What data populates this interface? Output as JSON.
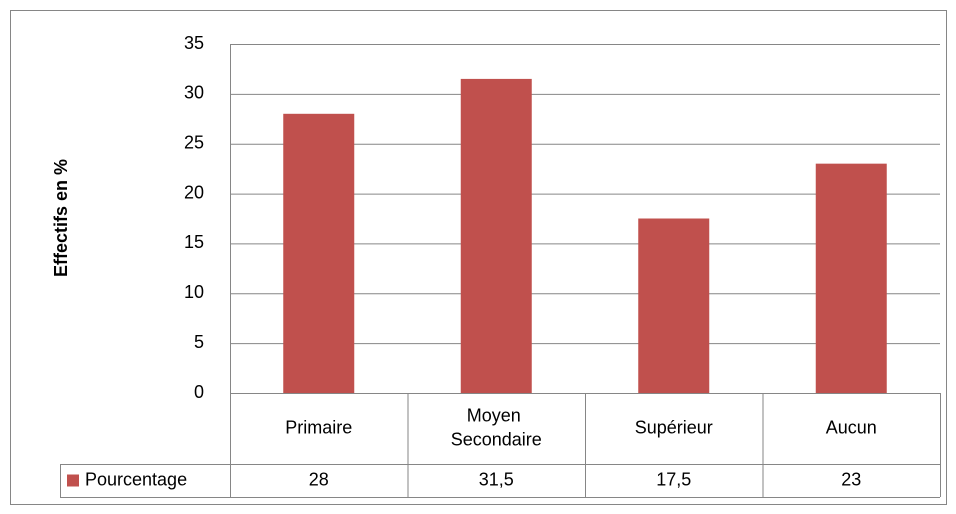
{
  "chart_data": {
    "type": "bar",
    "y_label": "Effectifs en %",
    "categories": [
      "Primaire",
      "Moyen Secondaire",
      "Supérieur",
      "Aucun"
    ],
    "series": [
      {
        "name": "Pourcentage",
        "color": "#c0504d",
        "values": [
          28,
          31.5,
          17.5,
          23
        ],
        "value_labels": [
          "28",
          "31,5",
          "17,5",
          "23"
        ]
      }
    ],
    "ylim": [
      0,
      35
    ],
    "yticks": [
      0,
      5,
      10,
      15,
      20,
      25,
      30,
      35
    ],
    "grid": true,
    "data_table": true
  }
}
